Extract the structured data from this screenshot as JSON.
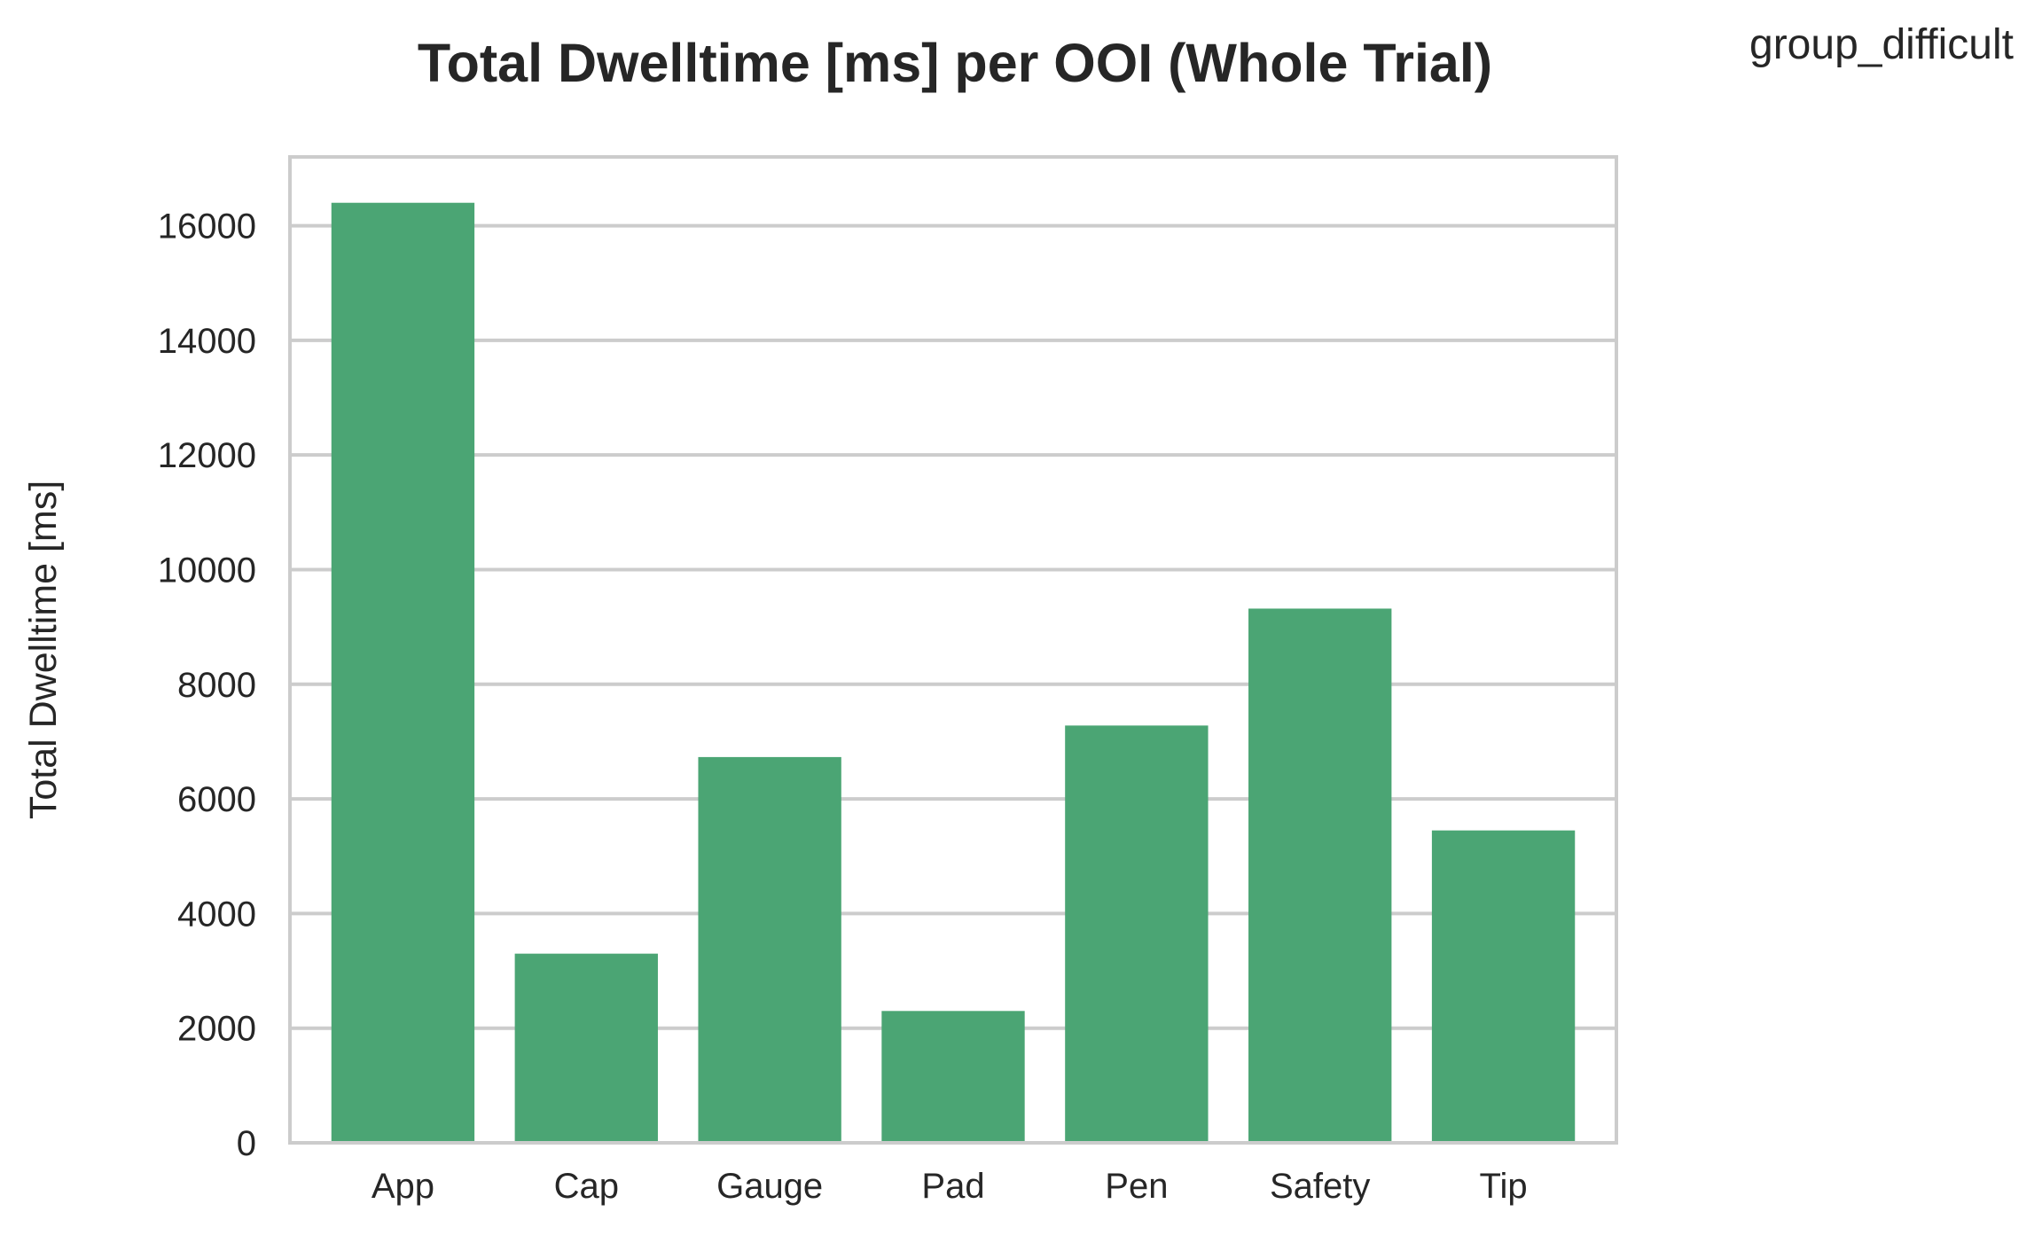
{
  "chart_data": {
    "type": "bar",
    "title": "Total Dwelltime [ms] per OOI (Whole Trial)",
    "corner_label": "group_difficult",
    "xlabel": "",
    "ylabel": "Total Dwelltime [ms]",
    "categories": [
      "App",
      "Cap",
      "Gauge",
      "Pad",
      "Pen",
      "Safety",
      "Tip"
    ],
    "values": [
      16400,
      3300,
      6730,
      2300,
      7280,
      9320,
      5450
    ],
    "ylim": [
      0,
      17200
    ],
    "yticks": [
      0,
      2000,
      4000,
      6000,
      8000,
      10000,
      12000,
      14000,
      16000
    ],
    "grid": "horizontal",
    "legend": "none",
    "bar_color": "#4ba574",
    "grid_color": "#cccccc",
    "frame_color": "#cccccc"
  }
}
